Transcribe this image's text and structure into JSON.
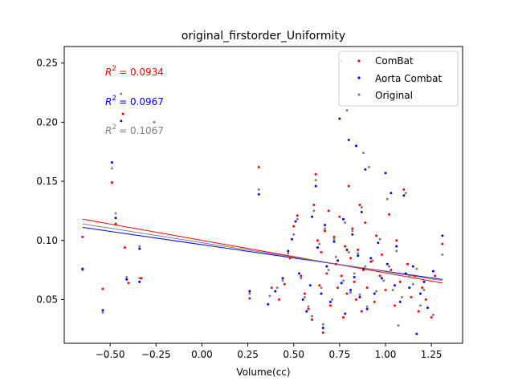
{
  "chart_data": {
    "type": "scatter",
    "title": "original_firstorder_Uniformity",
    "xlabel": "Volume(cc)",
    "ylabel": "",
    "xlim": [
      -0.75,
      1.42
    ],
    "ylim": [
      0.013,
      0.264
    ],
    "x_ticks": [
      -0.5,
      -0.25,
      0.0,
      0.25,
      0.5,
      0.75,
      1.0,
      1.25
    ],
    "x_tick_labels": [
      "−0.50",
      "−0.25",
      "0.00",
      "0.25",
      "0.50",
      "0.75",
      "1.00",
      "1.25"
    ],
    "y_ticks": [
      0.05,
      0.1,
      0.15,
      0.2,
      0.25
    ],
    "y_tick_labels": [
      "0.05",
      "0.10",
      "0.15",
      "0.20",
      "0.25"
    ],
    "grid": false,
    "legend_position": "top-right",
    "series": [
      {
        "name": "ComBat",
        "color": "#ff0000",
        "r2_label": "= 0.0934",
        "fit": {
          "x": [
            -0.65,
            1.31
          ],
          "y": [
            0.118,
            0.064
          ]
        },
        "points": [
          [
            -0.65,
            0.103
          ],
          [
            -0.54,
            0.059
          ],
          [
            -0.49,
            0.149
          ],
          [
            -0.47,
            0.114
          ],
          [
            -0.42,
            0.094
          ],
          [
            -0.4,
            0.064
          ],
          [
            -0.33,
            0.068
          ],
          [
            -0.43,
            0.207
          ],
          [
            0.26,
            0.051
          ],
          [
            0.31,
            0.162
          ],
          [
            0.38,
            0.06
          ],
          [
            0.42,
            0.05
          ],
          [
            0.45,
            0.063
          ],
          [
            0.48,
            0.085
          ],
          [
            0.5,
            0.112
          ],
          [
            0.52,
            0.121
          ],
          [
            0.54,
            0.07
          ],
          [
            0.56,
            0.055
          ],
          [
            0.58,
            0.042
          ],
          [
            0.6,
            0.033
          ],
          [
            0.61,
            0.13
          ],
          [
            0.62,
            0.156
          ],
          [
            0.63,
            0.1
          ],
          [
            0.64,
            0.062
          ],
          [
            0.65,
            0.09
          ],
          [
            0.66,
            0.022
          ],
          [
            0.67,
            0.108
          ],
          [
            0.68,
            0.072
          ],
          [
            0.69,
            0.125
          ],
          [
            0.7,
            0.045
          ],
          [
            0.72,
            0.103
          ],
          [
            0.73,
            0.08
          ],
          [
            0.74,
            0.06
          ],
          [
            0.75,
            0.12
          ],
          [
            0.76,
            0.07
          ],
          [
            0.77,
            0.035
          ],
          [
            0.78,
            0.095
          ],
          [
            0.79,
            0.055
          ],
          [
            0.8,
            0.146
          ],
          [
            0.81,
            0.085
          ],
          [
            0.82,
            0.11
          ],
          [
            0.83,
            0.065
          ],
          [
            0.84,
            0.05
          ],
          [
            0.85,
            0.092
          ],
          [
            0.86,
            0.13
          ],
          [
            0.87,
            0.04
          ],
          [
            0.88,
            0.075
          ],
          [
            0.89,
            0.115
          ],
          [
            0.9,
            0.06
          ],
          [
            0.92,
            0.082
          ],
          [
            0.94,
            0.048
          ],
          [
            0.95,
            0.104
          ],
          [
            0.97,
            0.07
          ],
          [
            0.98,
            0.088
          ],
          [
            1.0,
            0.058
          ],
          [
            1.02,
            0.122
          ],
          [
            1.03,
            0.075
          ],
          [
            1.05,
            0.045
          ],
          [
            1.06,
            0.1
          ],
          [
            1.08,
            0.065
          ],
          [
            1.1,
            0.143
          ],
          [
            1.12,
            0.08
          ],
          [
            1.14,
            0.052
          ],
          [
            1.16,
            0.07
          ],
          [
            1.18,
            0.04
          ],
          [
            1.2,
            0.06
          ],
          [
            1.22,
            0.05
          ],
          [
            1.25,
            0.035
          ],
          [
            1.27,
            0.07
          ],
          [
            1.31,
            0.097
          ]
        ]
      },
      {
        "name": "Aorta Combat",
        "color": "#0000ff",
        "r2_label": "= 0.0967",
        "fit": {
          "x": [
            -0.65,
            1.31
          ],
          "y": [
            0.111,
            0.067
          ]
        },
        "points": [
          [
            -0.65,
            0.076
          ],
          [
            -0.54,
            0.041
          ],
          [
            -0.49,
            0.166
          ],
          [
            -0.47,
            0.119
          ],
          [
            -0.41,
            0.067
          ],
          [
            -0.34,
            0.093
          ],
          [
            -0.34,
            0.065
          ],
          [
            -0.44,
            0.201
          ],
          [
            0.26,
            0.057
          ],
          [
            0.31,
            0.139
          ],
          [
            0.36,
            0.046
          ],
          [
            0.4,
            0.057
          ],
          [
            0.44,
            0.068
          ],
          [
            0.47,
            0.091
          ],
          [
            0.49,
            0.101
          ],
          [
            0.51,
            0.116
          ],
          [
            0.53,
            0.072
          ],
          [
            0.55,
            0.05
          ],
          [
            0.57,
            0.04
          ],
          [
            0.59,
            0.062
          ],
          [
            0.6,
            0.12
          ],
          [
            0.62,
            0.146
          ],
          [
            0.63,
            0.094
          ],
          [
            0.65,
            0.055
          ],
          [
            0.66,
            0.026
          ],
          [
            0.67,
            0.113
          ],
          [
            0.68,
            0.078
          ],
          [
            0.7,
            0.048
          ],
          [
            0.72,
            0.099
          ],
          [
            0.74,
            0.083
          ],
          [
            0.75,
            0.203
          ],
          [
            0.76,
            0.064
          ],
          [
            0.77,
            0.118
          ],
          [
            0.78,
            0.038
          ],
          [
            0.79,
            0.092
          ],
          [
            0.8,
            0.185
          ],
          [
            0.81,
            0.058
          ],
          [
            0.82,
            0.105
          ],
          [
            0.83,
            0.069
          ],
          [
            0.84,
            0.18
          ],
          [
            0.85,
            0.087
          ],
          [
            0.86,
            0.052
          ],
          [
            0.87,
            0.124
          ],
          [
            0.88,
            0.076
          ],
          [
            0.89,
            0.16
          ],
          [
            0.9,
            0.042
          ],
          [
            0.92,
            0.085
          ],
          [
            0.94,
            0.055
          ],
          [
            0.96,
            0.098
          ],
          [
            0.98,
            0.068
          ],
          [
            1.0,
            0.157
          ],
          [
            1.01,
            0.08
          ],
          [
            1.03,
            0.14
          ],
          [
            1.05,
            0.062
          ],
          [
            1.06,
            0.095
          ],
          [
            1.08,
            0.048
          ],
          [
            1.1,
            0.138
          ],
          [
            1.11,
            0.072
          ],
          [
            1.13,
            0.06
          ],
          [
            1.15,
            0.078
          ],
          [
            1.17,
            0.021
          ],
          [
            1.19,
            0.055
          ],
          [
            1.21,
            0.065
          ],
          [
            1.23,
            0.043
          ],
          [
            1.26,
            0.074
          ],
          [
            1.31,
            0.104
          ]
        ]
      },
      {
        "name": "Original",
        "color": "#808080",
        "r2_label": "= 0.1067",
        "fit": {
          "x": [
            -0.65,
            1.31
          ],
          "y": [
            0.114,
            0.066
          ]
        },
        "points": [
          [
            -0.65,
            0.075
          ],
          [
            -0.54,
            0.039
          ],
          [
            -0.49,
            0.161
          ],
          [
            -0.47,
            0.123
          ],
          [
            -0.41,
            0.069
          ],
          [
            -0.34,
            0.095
          ],
          [
            -0.34,
            0.068
          ],
          [
            -0.44,
            0.224
          ],
          [
            -0.26,
            0.2
          ],
          [
            0.26,
            0.055
          ],
          [
            0.31,
            0.143
          ],
          [
            0.37,
            0.053
          ],
          [
            0.41,
            0.06
          ],
          [
            0.44,
            0.066
          ],
          [
            0.47,
            0.089
          ],
          [
            0.5,
            0.105
          ],
          [
            0.52,
            0.118
          ],
          [
            0.54,
            0.068
          ],
          [
            0.56,
            0.052
          ],
          [
            0.58,
            0.044
          ],
          [
            0.6,
            0.036
          ],
          [
            0.61,
            0.125
          ],
          [
            0.62,
            0.151
          ],
          [
            0.64,
            0.097
          ],
          [
            0.65,
            0.06
          ],
          [
            0.66,
            0.029
          ],
          [
            0.67,
            0.11
          ],
          [
            0.69,
            0.075
          ],
          [
            0.71,
            0.05
          ],
          [
            0.72,
            0.101
          ],
          [
            0.73,
            0.086
          ],
          [
            0.76,
            0.252
          ],
          [
            0.77,
            0.066
          ],
          [
            0.78,
            0.115
          ],
          [
            0.79,
            0.21
          ],
          [
            0.8,
            0.09
          ],
          [
            0.81,
            0.056
          ],
          [
            0.82,
            0.108
          ],
          [
            0.83,
            0.072
          ],
          [
            0.85,
            0.089
          ],
          [
            0.86,
            0.054
          ],
          [
            0.87,
            0.128
          ],
          [
            0.88,
            0.174
          ],
          [
            0.89,
            0.078
          ],
          [
            0.9,
            0.044
          ],
          [
            0.91,
            0.162
          ],
          [
            0.93,
            0.083
          ],
          [
            0.95,
            0.057
          ],
          [
            0.97,
            0.101
          ],
          [
            0.99,
            0.066
          ],
          [
            1.01,
            0.135
          ],
          [
            1.02,
            0.078
          ],
          [
            1.04,
            0.058
          ],
          [
            1.06,
            0.091
          ],
          [
            1.07,
            0.028
          ],
          [
            1.09,
            0.052
          ],
          [
            1.11,
            0.14
          ],
          [
            1.13,
            0.07
          ],
          [
            1.15,
            0.063
          ],
          [
            1.17,
            0.076
          ],
          [
            1.19,
            0.045
          ],
          [
            1.21,
            0.058
          ],
          [
            1.24,
            0.068
          ],
          [
            1.26,
            0.037
          ],
          [
            1.31,
            0.088
          ]
        ]
      }
    ]
  }
}
